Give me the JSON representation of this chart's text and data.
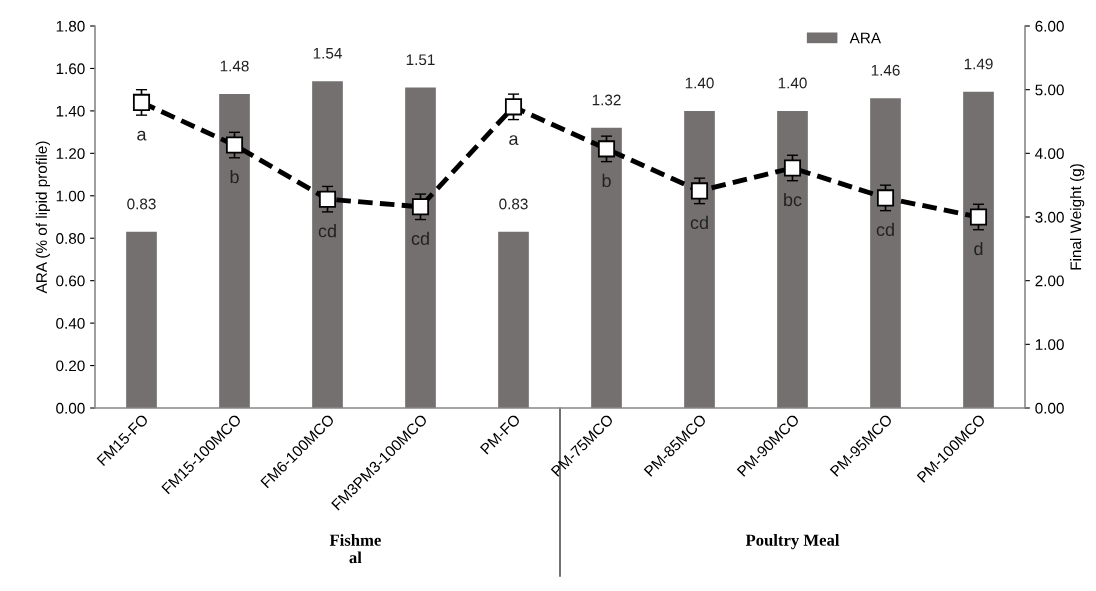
{
  "chart_data": {
    "type": "bar",
    "categories": [
      "FM15-FO",
      "FM15-100MCO",
      "FM6-100MCO",
      "FM3PM3-100MCO",
      "PM-FO",
      "PM-75MCO",
      "PM-85MCO",
      "PM-90MCO",
      "PM-95MCO",
      "PM-100MCO"
    ],
    "series": [
      {
        "name": "ARA",
        "color": "#757070",
        "values": [
          0.83,
          1.48,
          1.54,
          1.51,
          0.83,
          1.32,
          1.4,
          1.4,
          1.46,
          1.49
        ],
        "value_labels": [
          "0.83",
          "1.48",
          "1.54",
          "1.51",
          "0.83",
          "1.32",
          "1.40",
          "1.40",
          "1.46",
          "1.49"
        ]
      },
      {
        "type": "line",
        "axis": "y2",
        "color": "#000000",
        "marker": "square",
        "line_style": "dashed",
        "values": [
          4.8,
          4.13,
          3.28,
          3.16,
          4.73,
          4.07,
          3.41,
          3.77,
          3.3,
          3.0
        ],
        "errors": [
          0.2,
          0.2,
          0.2,
          0.2,
          0.2,
          0.2,
          0.2,
          0.2,
          0.2,
          0.2
        ]
      }
    ],
    "ylabel": "ARA (% of lipid profile)",
    "y2label": "Final Weight (g)",
    "ylim": [
      0,
      1.8
    ],
    "yticks": [
      {
        "value": 0,
        "label": "0.00"
      },
      {
        "value": 0.2,
        "label": "0.20"
      },
      {
        "value": 0.4,
        "label": "0.40"
      },
      {
        "value": 0.6,
        "label": "0.60"
      },
      {
        "value": 0.8,
        "label": "0.80"
      },
      {
        "value": 1.0,
        "label": "1.00"
      },
      {
        "value": 1.2,
        "label": "1.20"
      },
      {
        "value": 1.4,
        "label": "1.40"
      },
      {
        "value": 1.6,
        "label": "1.60"
      },
      {
        "value": 1.8,
        "label": "1.80"
      }
    ],
    "y2lim": [
      0,
      6
    ],
    "y2ticks": [
      {
        "value": 0,
        "label": "0.00"
      },
      {
        "value": 1,
        "label": "1.00"
      },
      {
        "value": 2,
        "label": "2.00"
      },
      {
        "value": 3,
        "label": "3.00"
      },
      {
        "value": 4,
        "label": "4.00"
      },
      {
        "value": 5,
        "label": "5.00"
      },
      {
        "value": 6,
        "label": "6.00"
      }
    ],
    "annotations": [
      "a",
      "b",
      "cd",
      "cd",
      "a",
      "b",
      "cd",
      "bc",
      "cd",
      "d",
      "Fishme\nal",
      "Poultry Meal"
    ],
    "legend": "top right",
    "grid": false
  }
}
